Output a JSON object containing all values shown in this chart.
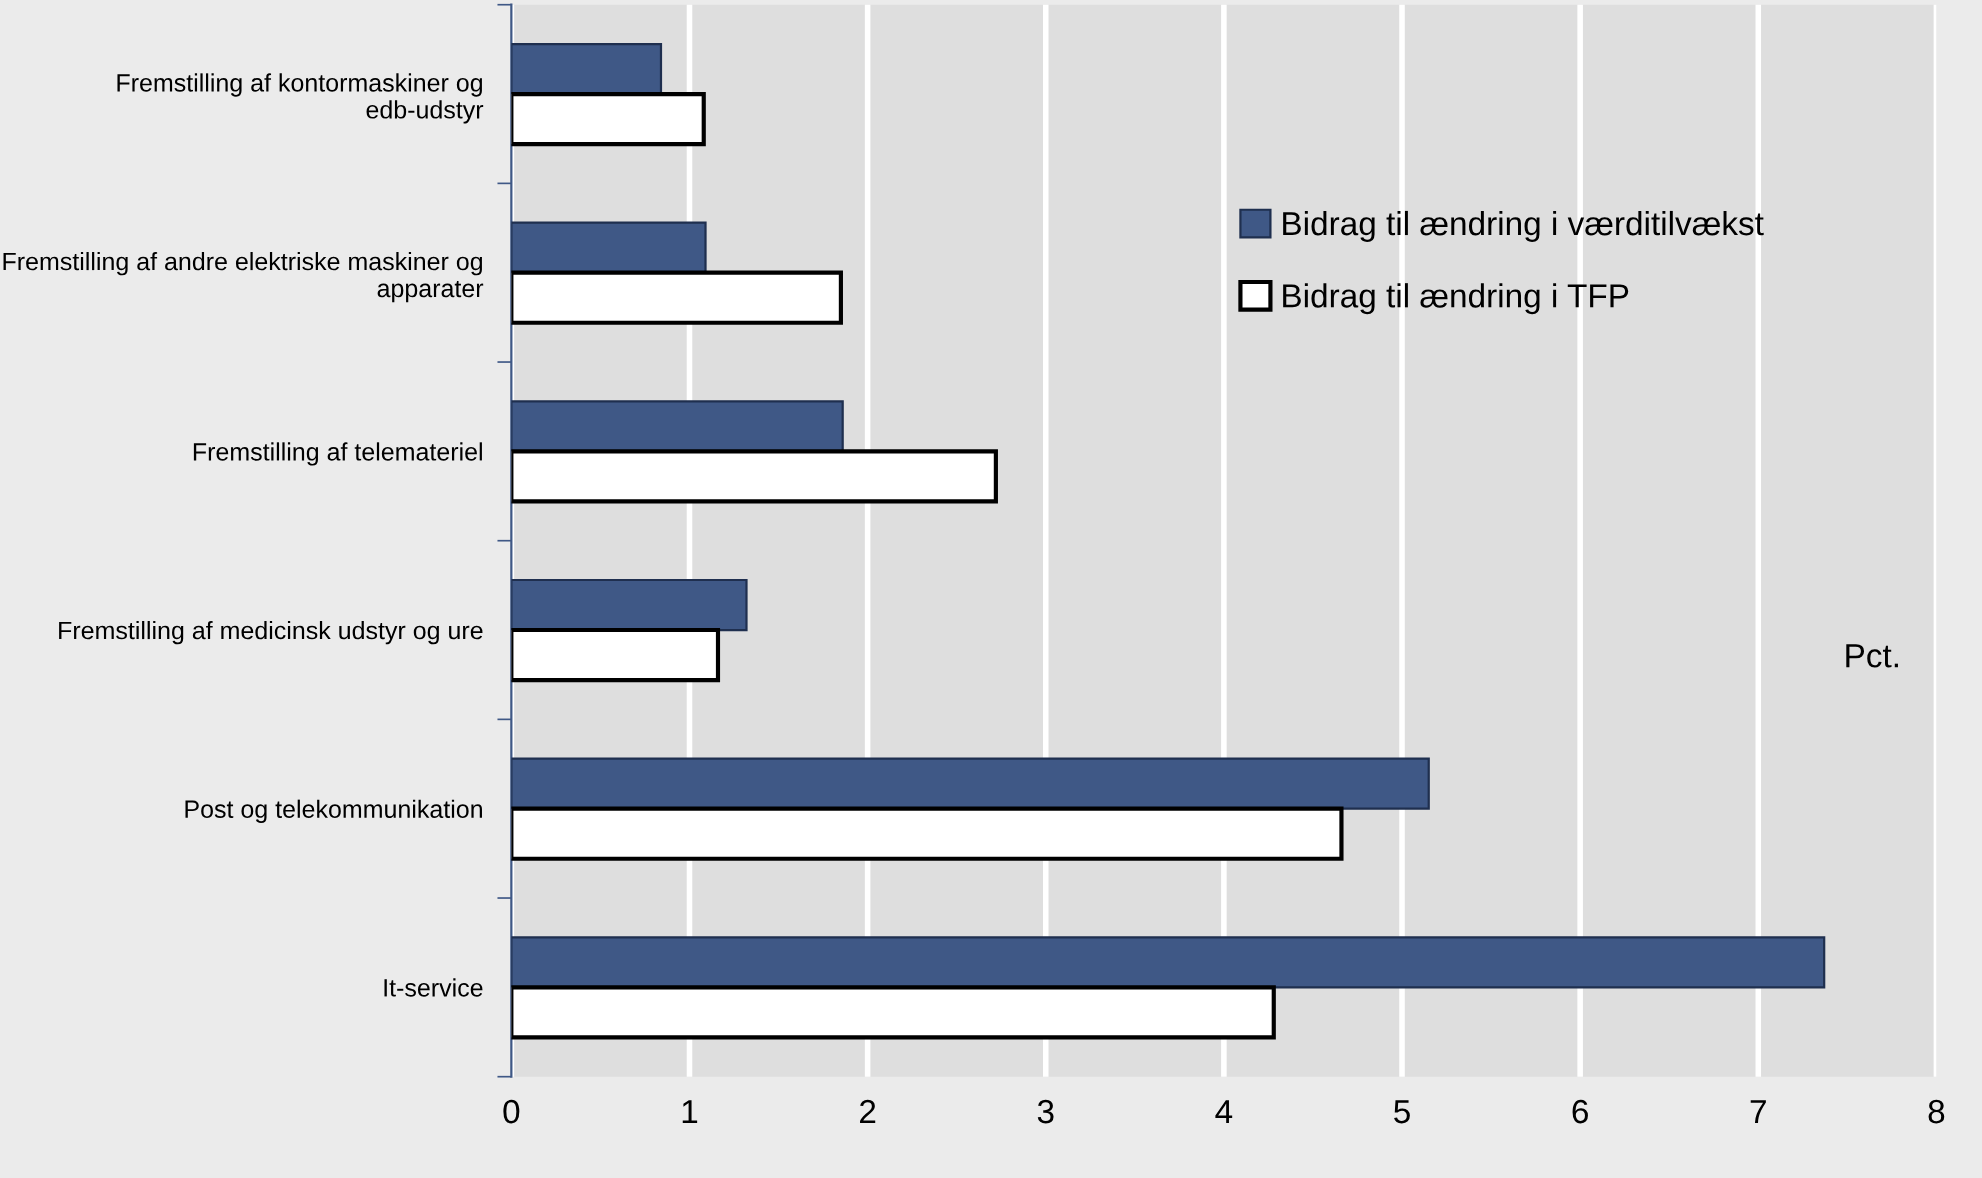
{
  "chart_data": {
    "type": "bar",
    "orientation": "horizontal",
    "categories": [
      "Fremstilling af kontormaskiner og edb-udstyr",
      "Fremstilling af andre elektriske maskiner og apparater",
      "Fremstilling af telemateriel",
      "Fremstilling af medicinsk udstyr og ure",
      "Post og telekommunikation",
      "It-service"
    ],
    "series": [
      {
        "name": "Bidrag til ændring i værditilvækst",
        "color": "#3f5886",
        "values": [
          0.84,
          1.09,
          1.86,
          1.32,
          5.15,
          7.37
        ]
      },
      {
        "name": "Bidrag til ændring i TFP",
        "color": "#ffffff",
        "values": [
          1.08,
          1.85,
          2.72,
          1.16,
          4.66,
          4.28
        ]
      }
    ],
    "xlim": [
      0,
      8
    ],
    "xticks": [
      0,
      1,
      2,
      3,
      4,
      5,
      6,
      7,
      8
    ],
    "grid": "x",
    "legend": "right",
    "annotations": [
      "Pct."
    ]
  }
}
